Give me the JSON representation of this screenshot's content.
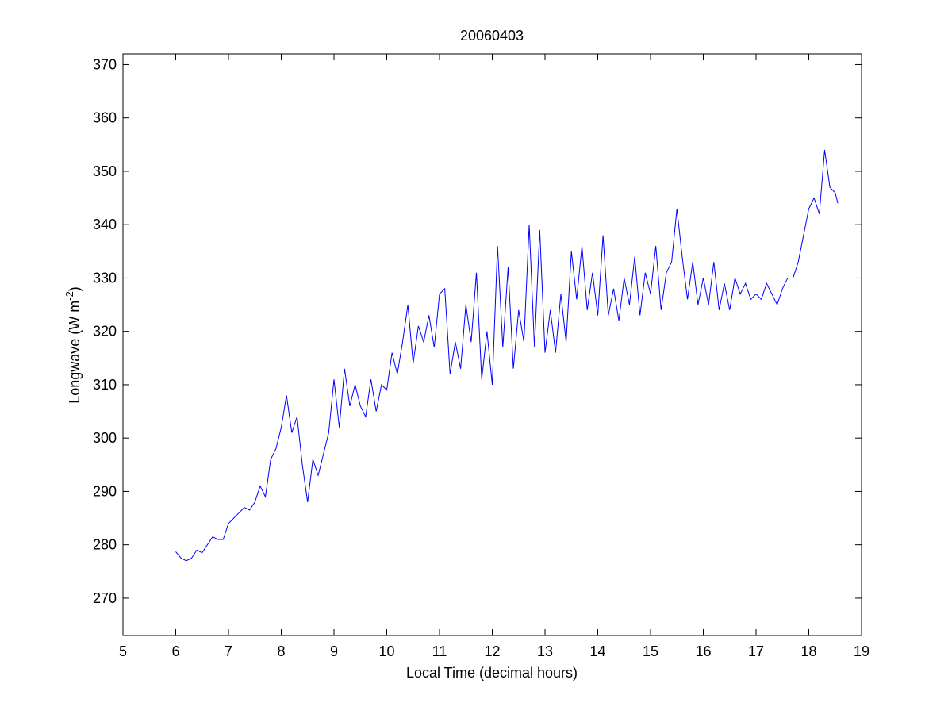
{
  "chart_data": {
    "type": "line",
    "title": "20060403",
    "xlabel": "Local Time (decimal hours)",
    "ylabel": "Longwave (W m",
    "ylabel_sup": "-2",
    "ylabel_end": ")",
    "xlim": [
      5,
      19
    ],
    "xticks": [
      5,
      6,
      7,
      8,
      9,
      10,
      11,
      12,
      13,
      14,
      15,
      16,
      17,
      18,
      19
    ],
    "ylim": [
      263,
      372
    ],
    "yticks": [
      270,
      280,
      290,
      300,
      310,
      320,
      330,
      340,
      350,
      360,
      370
    ],
    "grid": false,
    "x": [
      6.0,
      6.1,
      6.2,
      6.3,
      6.4,
      6.5,
      6.6,
      6.7,
      6.8,
      6.9,
      7.0,
      7.1,
      7.2,
      7.3,
      7.4,
      7.5,
      7.6,
      7.7,
      7.8,
      7.9,
      8.0,
      8.1,
      8.2,
      8.3,
      8.4,
      8.5,
      8.6,
      8.7,
      8.8,
      8.9,
      9.0,
      9.1,
      9.2,
      9.3,
      9.4,
      9.5,
      9.6,
      9.7,
      9.8,
      9.9,
      10.0,
      10.1,
      10.2,
      10.3,
      10.4,
      10.5,
      10.6,
      10.7,
      10.8,
      10.9,
      11.0,
      11.1,
      11.2,
      11.3,
      11.4,
      11.5,
      11.6,
      11.7,
      11.8,
      11.9,
      12.0,
      12.1,
      12.2,
      12.3,
      12.4,
      12.5,
      12.6,
      12.7,
      12.8,
      12.9,
      13.0,
      13.1,
      13.2,
      13.3,
      13.4,
      13.5,
      13.6,
      13.7,
      13.8,
      13.9,
      14.0,
      14.1,
      14.2,
      14.3,
      14.4,
      14.5,
      14.6,
      14.7,
      14.8,
      14.9,
      15.0,
      15.1,
      15.2,
      15.3,
      15.4,
      15.5,
      15.6,
      15.7,
      15.8,
      15.9,
      16.0,
      16.1,
      16.2,
      16.3,
      16.4,
      16.5,
      16.6,
      16.7,
      16.8,
      16.9,
      17.0,
      17.1,
      17.2,
      17.3,
      17.4,
      17.5,
      17.6,
      17.7,
      17.8,
      17.9,
      18.0,
      18.1,
      18.2,
      18.3,
      18.4,
      18.5,
      18.55
    ],
    "series": [
      {
        "color": "#0000ff",
        "values": [
          278.7,
          277.5,
          277,
          277.5,
          279,
          278.5,
          280,
          281.5,
          281,
          281,
          284,
          285,
          286,
          287,
          286.5,
          288,
          291,
          289,
          296,
          298,
          302,
          308,
          301,
          304,
          295,
          288,
          296,
          293,
          297,
          301,
          311,
          302,
          313,
          306,
          310,
          306,
          304,
          311,
          305,
          310,
          309,
          316,
          312,
          318,
          325,
          314,
          321,
          318,
          323,
          317,
          327,
          328,
          312,
          318,
          313,
          325,
          318,
          331,
          311,
          320,
          310,
          336,
          317,
          332,
          313,
          324,
          318,
          340,
          317,
          339,
          316,
          324,
          316,
          327,
          318,
          335,
          326,
          336,
          324,
          331,
          323,
          338,
          323,
          328,
          322,
          330,
          325,
          334,
          323,
          331,
          327,
          336,
          324,
          331,
          333,
          343,
          334,
          326,
          333,
          325,
          330,
          325,
          333,
          324,
          329,
          324,
          330,
          327,
          329,
          326,
          327,
          326,
          329,
          327,
          325,
          328,
          330,
          330,
          333,
          338,
          343,
          345,
          342,
          354,
          347,
          346,
          344
        ]
      }
    ]
  }
}
